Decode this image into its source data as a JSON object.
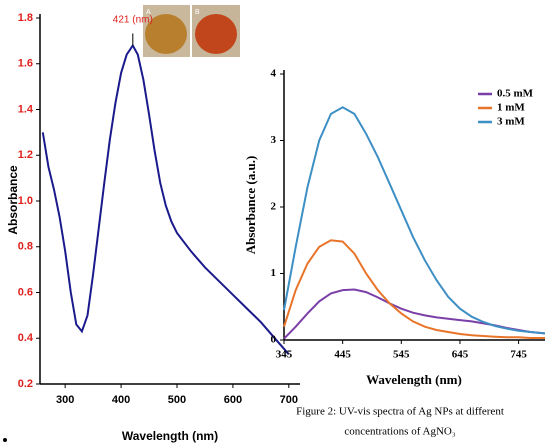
{
  "chart_data": [
    {
      "type": "line",
      "annotation": "421 (nm)",
      "photo_labels": [
        "A",
        "B"
      ],
      "xlabel": "Wavelength (nm)",
      "ylabel": "Absorbance",
      "x": [
        260,
        270,
        280,
        290,
        300,
        310,
        320,
        330,
        340,
        350,
        360,
        370,
        380,
        390,
        400,
        410,
        421,
        430,
        440,
        450,
        460,
        470,
        480,
        490,
        500,
        525,
        550,
        575,
        600,
        625,
        650,
        675,
        700
      ],
      "values": [
        1.3,
        1.15,
        1.05,
        0.93,
        0.78,
        0.6,
        0.46,
        0.43,
        0.5,
        0.68,
        0.88,
        1.08,
        1.27,
        1.43,
        1.56,
        1.64,
        1.68,
        1.64,
        1.53,
        1.38,
        1.22,
        1.08,
        0.98,
        0.91,
        0.86,
        0.78,
        0.71,
        0.65,
        0.59,
        0.53,
        0.47,
        0.4,
        0.33
      ],
      "color": "#1a1a8c",
      "ytick_color": "#e0201c",
      "xlim": [
        255,
        720
      ],
      "ylim": [
        0.2,
        1.8
      ],
      "xticks": [
        300,
        400,
        500,
        600,
        700
      ],
      "yticks": [
        0.2,
        0.4,
        0.6,
        0.8,
        {
          "value": 1,
          "label": "1.0"
        },
        1.2,
        1.4,
        1.6,
        1.8
      ]
    },
    {
      "type": "line",
      "xlabel": "Wavelength (nm)",
      "ylabel": "Absorbance (a.u.)",
      "caption": [
        "Figure 2: UV-vis spectra of Ag NPs at different",
        "concentrations of AgNO₃"
      ],
      "x": [
        345,
        365,
        385,
        405,
        425,
        445,
        465,
        485,
        505,
        525,
        545,
        565,
        585,
        605,
        625,
        645,
        665,
        685,
        705,
        725,
        745,
        765,
        790
      ],
      "series": [
        {
          "name": "0.5 mM",
          "color": "#7b3fa8",
          "values": [
            0.02,
            0.2,
            0.4,
            0.58,
            0.7,
            0.75,
            0.76,
            0.72,
            0.64,
            0.55,
            0.47,
            0.41,
            0.37,
            0.34,
            0.32,
            0.3,
            0.28,
            0.25,
            0.22,
            0.18,
            0.15,
            0.12,
            0.1
          ]
        },
        {
          "name": "1 mM",
          "color": "#e8742a",
          "values": [
            0.2,
            0.75,
            1.15,
            1.4,
            1.5,
            1.48,
            1.3,
            1.0,
            0.75,
            0.55,
            0.4,
            0.28,
            0.2,
            0.15,
            0.12,
            0.09,
            0.07,
            0.06,
            0.05,
            0.04,
            0.04,
            0.03,
            0.03
          ]
        },
        {
          "name": "3 mM",
          "color": "#3d8fc4",
          "values": [
            0.45,
            1.4,
            2.3,
            3.0,
            3.4,
            3.5,
            3.4,
            3.1,
            2.75,
            2.35,
            1.95,
            1.55,
            1.2,
            0.9,
            0.65,
            0.47,
            0.35,
            0.27,
            0.21,
            0.17,
            0.14,
            0.12,
            0.1
          ]
        }
      ],
      "xlim": [
        345,
        790
      ],
      "ylim": [
        0,
        4
      ],
      "xticks": [
        345,
        445,
        545,
        645,
        745
      ],
      "yticks": [
        0,
        1,
        2,
        3,
        4
      ],
      "legend": "upper right"
    }
  ]
}
